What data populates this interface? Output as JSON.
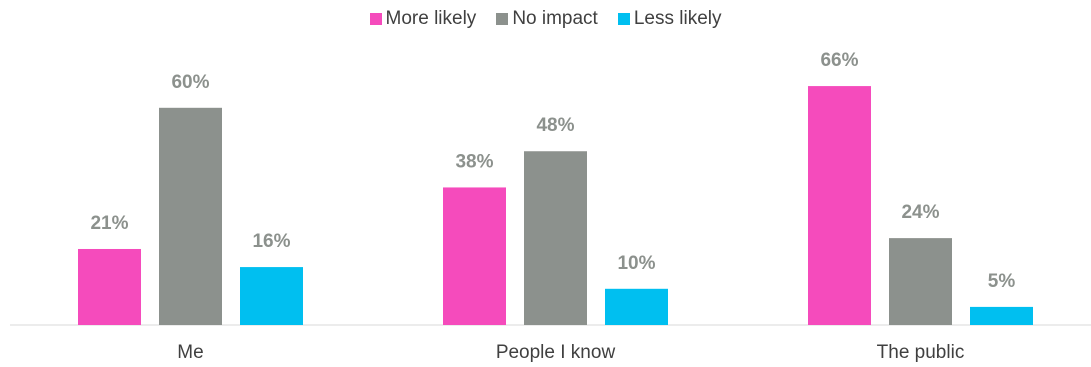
{
  "chart_data": {
    "type": "bar",
    "title": "",
    "xlabel": "",
    "ylabel": "",
    "ylim": [
      0,
      70
    ],
    "grid": false,
    "legend_position": "top-center",
    "categories": [
      "Me",
      "People I know",
      "The public"
    ],
    "series": [
      {
        "name": "More likely",
        "color": "#f54bbc",
        "values": [
          21,
          38,
          66
        ],
        "labels": [
          "21%",
          "38%",
          "66%"
        ]
      },
      {
        "name": "No impact",
        "color": "#8c918d",
        "values": [
          60,
          48,
          24
        ],
        "labels": [
          "60%",
          "48%",
          "24%"
        ]
      },
      {
        "name": "Less likely",
        "color": "#00bff0",
        "values": [
          16,
          10,
          5
        ],
        "labels": [
          "16%",
          "10%",
          "5%"
        ]
      }
    ]
  }
}
